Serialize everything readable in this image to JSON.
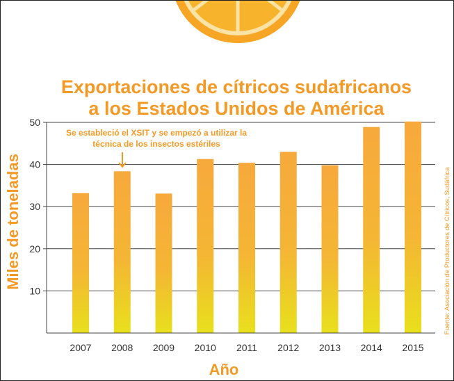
{
  "chart_data": {
    "type": "bar",
    "title_lines": [
      "Exportaciones de cítricos sudafricanos",
      "a los Estados Unidos de América"
    ],
    "xlabel": "Año",
    "ylabel": "Miles de toneladas",
    "categories": [
      "2007",
      "2008",
      "2009",
      "2010",
      "2011",
      "2012",
      "2013",
      "2014",
      "2015"
    ],
    "values": [
      33.2,
      38.4,
      33.1,
      41.3,
      40.4,
      43.0,
      39.8,
      48.9,
      50.2
    ],
    "ylim": [
      0,
      50
    ],
    "yticks": [
      "10",
      "20",
      "30",
      "40",
      "50"
    ],
    "grid": true,
    "annotation": {
      "lines": [
        "Se estableció el XSIT y se empezó a utilizar la",
        "técnica de los insectos estériles"
      ],
      "category": "2008"
    },
    "source": "Fuente: Asociación de Productores de Cítricos, Sudáfrica",
    "colors": {
      "bar_top": "#f7a93c",
      "bar_bottom": "#e8e01c",
      "title": "#f39a26",
      "grid": "#444444"
    }
  }
}
